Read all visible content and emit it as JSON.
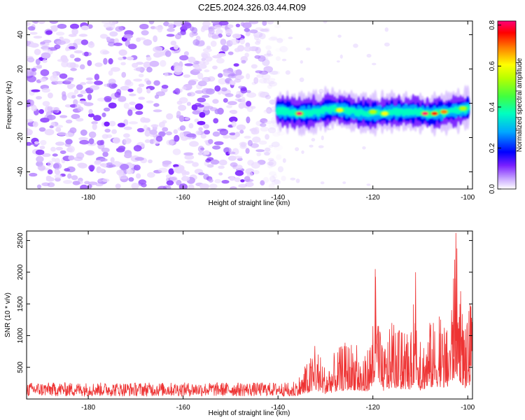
{
  "figure": {
    "title": "C2E5.2024.326.03.44.R09"
  },
  "chart_data": [
    {
      "type": "heatmap",
      "xlabel": "Height of straight line (km)",
      "ylabel": "Frequency (Hz)",
      "xlim": [
        -193,
        -99
      ],
      "ylim": [
        -50,
        48
      ],
      "x_ticks": [
        -180,
        -160,
        -140,
        -120,
        -100
      ],
      "y_ticks": [
        -40,
        -20,
        0,
        20,
        40
      ],
      "grid": false,
      "colorbar": {
        "label": "Normalized spectral amplitude",
        "range": [
          0,
          0.82
        ],
        "ticks": [
          0.0,
          0.2,
          0.4,
          0.6,
          0.8
        ],
        "colormap": [
          "#ffffff",
          "#b080ff",
          "#6000ff",
          "#0000ff",
          "#00c0ff",
          "#00ffb0",
          "#60ff00",
          "#ffff00",
          "#ff8000",
          "#ff0000",
          "#ff0080"
        ]
      },
      "noise_region": {
        "x": [
          -193,
          -141
        ],
        "y": [
          -50,
          48
        ],
        "amplitude": 0.08
      },
      "signal_band": {
        "x": [
          -140,
          -100
        ],
        "center_frequency": [
          [
            -140,
            -4
          ],
          [
            -136,
            -6
          ],
          [
            -132,
            -5
          ],
          [
            -128,
            -3
          ],
          [
            -124,
            -5
          ],
          [
            -120,
            -6
          ],
          [
            -116,
            -5
          ],
          [
            -112,
            -5
          ],
          [
            -108,
            -6
          ],
          [
            -104,
            -5
          ],
          [
            -100,
            -3
          ]
        ],
        "peaks": [
          {
            "x": [
              -135.5,
              -6
            ],
            "amplitude": 0.82
          },
          {
            "x": [
              -127,
              -4
            ],
            "amplitude": 0.6
          },
          {
            "x": [
              -120,
              -5
            ],
            "amplitude": 0.5
          },
          {
            "x": [
              -117.5,
              -6
            ],
            "amplitude": 0.55
          },
          {
            "x": [
              -109,
              -6
            ],
            "amplitude": 0.82
          },
          {
            "x": [
              -107,
              -6
            ],
            "amplitude": 0.8
          },
          {
            "x": [
              -105,
              -5
            ],
            "amplitude": 0.7
          },
          {
            "x": [
              -101,
              -3
            ],
            "amplitude": 0.45
          }
        ]
      }
    },
    {
      "type": "line",
      "xlabel": "Height of straight line (km)",
      "ylabel": "SNR (10 * v/v)",
      "xlim": [
        -193,
        -99
      ],
      "ylim": [
        0,
        2650
      ],
      "x_ticks": [
        -180,
        -160,
        -140,
        -120,
        -100
      ],
      "y_ticks": [
        500,
        1000,
        1500,
        2000,
        2500
      ],
      "grid": false,
      "series": [
        {
          "color": "#ee3333",
          "x": [
            -193,
            -185,
            -175,
            -165,
            -155,
            -145,
            -140,
            -137,
            -135,
            -133,
            -132,
            -130,
            -128,
            -126,
            -124,
            -122,
            -120,
            -119.5,
            -118,
            -116,
            -114,
            -112,
            -111,
            -110,
            -108,
            -106,
            -104.5,
            -103,
            -102.5,
            -101.5,
            -100.5,
            -99.5
          ],
          "y": [
            150,
            150,
            160,
            155,
            160,
            170,
            190,
            300,
            420,
            700,
            880,
            520,
            750,
            900,
            950,
            600,
            1150,
            2050,
            800,
            1200,
            1050,
            1000,
            2000,
            900,
            1200,
            1300,
            1050,
            1900,
            2620,
            1700,
            1100,
            1500
          ]
        }
      ]
    }
  ]
}
